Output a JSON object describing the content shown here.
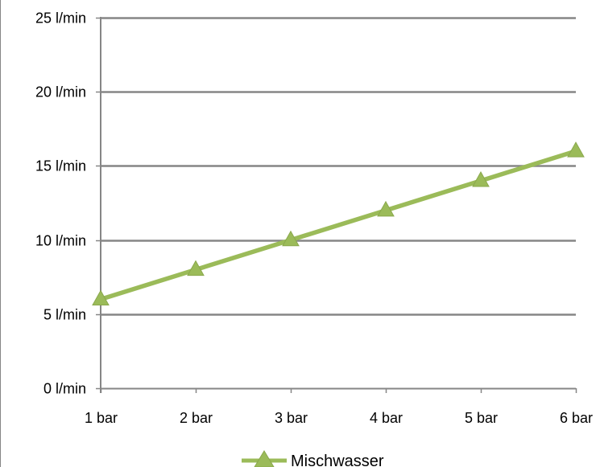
{
  "chart_data": {
    "type": "line",
    "categories": [
      "1 bar",
      "2 bar",
      "3 bar",
      "4 bar",
      "5 bar",
      "6 bar"
    ],
    "series": [
      {
        "name": "Mischwasser",
        "values": [
          6,
          8,
          10,
          12,
          14,
          16
        ],
        "color": "#9BBB59",
        "marker": "triangle"
      }
    ],
    "y_tick_labels": [
      "0 l/min",
      "5 l/min",
      "10 l/min",
      "15 l/min",
      "20 l/min",
      "25 l/min"
    ],
    "y_tick_values": [
      0,
      5,
      10,
      15,
      20,
      25
    ],
    "ylim": [
      0,
      25
    ],
    "grid": true,
    "gridline_color": "#868686",
    "legend_position": "bottom"
  }
}
